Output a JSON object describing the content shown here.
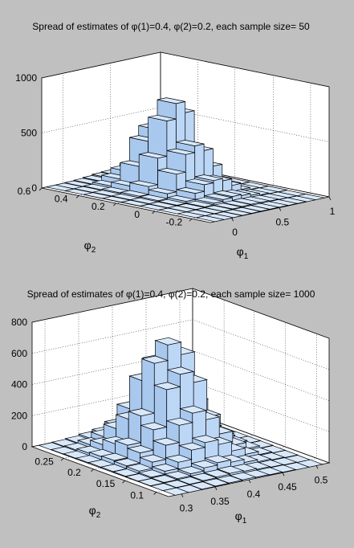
{
  "chart_data": [
    {
      "type": "bar3d",
      "title": "Spread of estimates of φ(1)=0.4, φ(2)=0.2, each sample size= 50",
      "xlabel": "φ",
      "xlabel_sub": "1",
      "ylabel": "φ",
      "ylabel_sub": "2",
      "xlim": [
        -0.3,
        1.0
      ],
      "ylim": [
        -0.3,
        0.6
      ],
      "zlim": [
        0,
        1000
      ],
      "x_ticks": [
        "0",
        "0.5",
        "1"
      ],
      "y_ticks": [
        "0.6",
        "0.4",
        "0.2",
        "0",
        "-0.2"
      ],
      "z_ticks": [
        "0",
        "500",
        "1000"
      ],
      "grid": true,
      "x_centers": [
        -0.2,
        -0.1,
        0.0,
        0.1,
        0.2,
        0.3,
        0.4,
        0.5,
        0.6,
        0.7,
        0.8,
        0.9
      ],
      "y_centers": [
        -0.25,
        -0.15,
        -0.05,
        0.05,
        0.15,
        0.25,
        0.35,
        0.45,
        0.55
      ],
      "counts": [
        [
          0,
          0,
          0,
          2,
          3,
          4,
          5,
          4,
          3,
          2,
          0,
          0
        ],
        [
          0,
          0,
          2,
          4,
          8,
          12,
          15,
          12,
          8,
          4,
          2,
          0
        ],
        [
          0,
          2,
          4,
          10,
          25,
          40,
          50,
          40,
          25,
          10,
          4,
          2
        ],
        [
          0,
          3,
          8,
          25,
          80,
          140,
          160,
          140,
          80,
          25,
          8,
          3
        ],
        [
          2,
          5,
          15,
          60,
          220,
          380,
          440,
          380,
          220,
          60,
          15,
          5
        ],
        [
          2,
          6,
          20,
          90,
          330,
          650,
          790,
          690,
          330,
          90,
          20,
          6
        ],
        [
          1,
          5,
          15,
          60,
          220,
          430,
          520,
          430,
          220,
          60,
          15,
          5
        ],
        [
          0,
          3,
          8,
          25,
          70,
          120,
          140,
          120,
          70,
          25,
          8,
          3
        ],
        [
          0,
          0,
          3,
          8,
          15,
          25,
          30,
          25,
          15,
          8,
          3,
          0
        ]
      ]
    },
    {
      "type": "bar3d",
      "title": "Spread of estimates of φ(1)=0.4, φ(2)=0.2, each sample size= 1000",
      "xlabel": "φ",
      "xlabel_sub": "1",
      "ylabel": "φ",
      "ylabel_sub": "2",
      "xlim": [
        0.28,
        0.52
      ],
      "ylim": [
        0.08,
        0.3
      ],
      "zlim": [
        0,
        800
      ],
      "x_ticks": [
        "0.3",
        "0.35",
        "0.4",
        "0.45",
        "0.5"
      ],
      "y_ticks": [
        "0.25",
        "0.2",
        "0.15",
        "0.1"
      ],
      "z_ticks": [
        "0",
        "200",
        "400",
        "600",
        "800"
      ],
      "grid": true,
      "x_centers": [
        0.3,
        0.32,
        0.34,
        0.36,
        0.38,
        0.4,
        0.42,
        0.44,
        0.46,
        0.48,
        0.5
      ],
      "y_centers": [
        0.09,
        0.11,
        0.13,
        0.15,
        0.17,
        0.19,
        0.21,
        0.23,
        0.25,
        0.27,
        0.29
      ],
      "counts": [
        [
          0,
          0,
          2,
          4,
          6,
          8,
          6,
          4,
          2,
          0,
          0
        ],
        [
          0,
          2,
          5,
          10,
          15,
          20,
          15,
          10,
          5,
          2,
          0
        ],
        [
          2,
          5,
          12,
          25,
          45,
          60,
          45,
          25,
          12,
          5,
          2
        ],
        [
          3,
          10,
          30,
          70,
          130,
          160,
          130,
          70,
          30,
          10,
          3
        ],
        [
          5,
          20,
          60,
          150,
          260,
          320,
          260,
          150,
          60,
          20,
          5
        ],
        [
          6,
          25,
          90,
          220,
          460,
          540,
          470,
          230,
          90,
          25,
          6
        ],
        [
          6,
          30,
          110,
          280,
          600,
          700,
          620,
          300,
          110,
          30,
          6
        ],
        [
          5,
          25,
          90,
          230,
          460,
          560,
          470,
          240,
          90,
          25,
          5
        ],
        [
          4,
          18,
          55,
          140,
          250,
          310,
          250,
          140,
          55,
          18,
          4
        ],
        [
          2,
          8,
          25,
          60,
          110,
          130,
          110,
          60,
          25,
          8,
          2
        ],
        [
          0,
          3,
          8,
          18,
          30,
          40,
          30,
          18,
          8,
          3,
          0
        ]
      ]
    }
  ]
}
